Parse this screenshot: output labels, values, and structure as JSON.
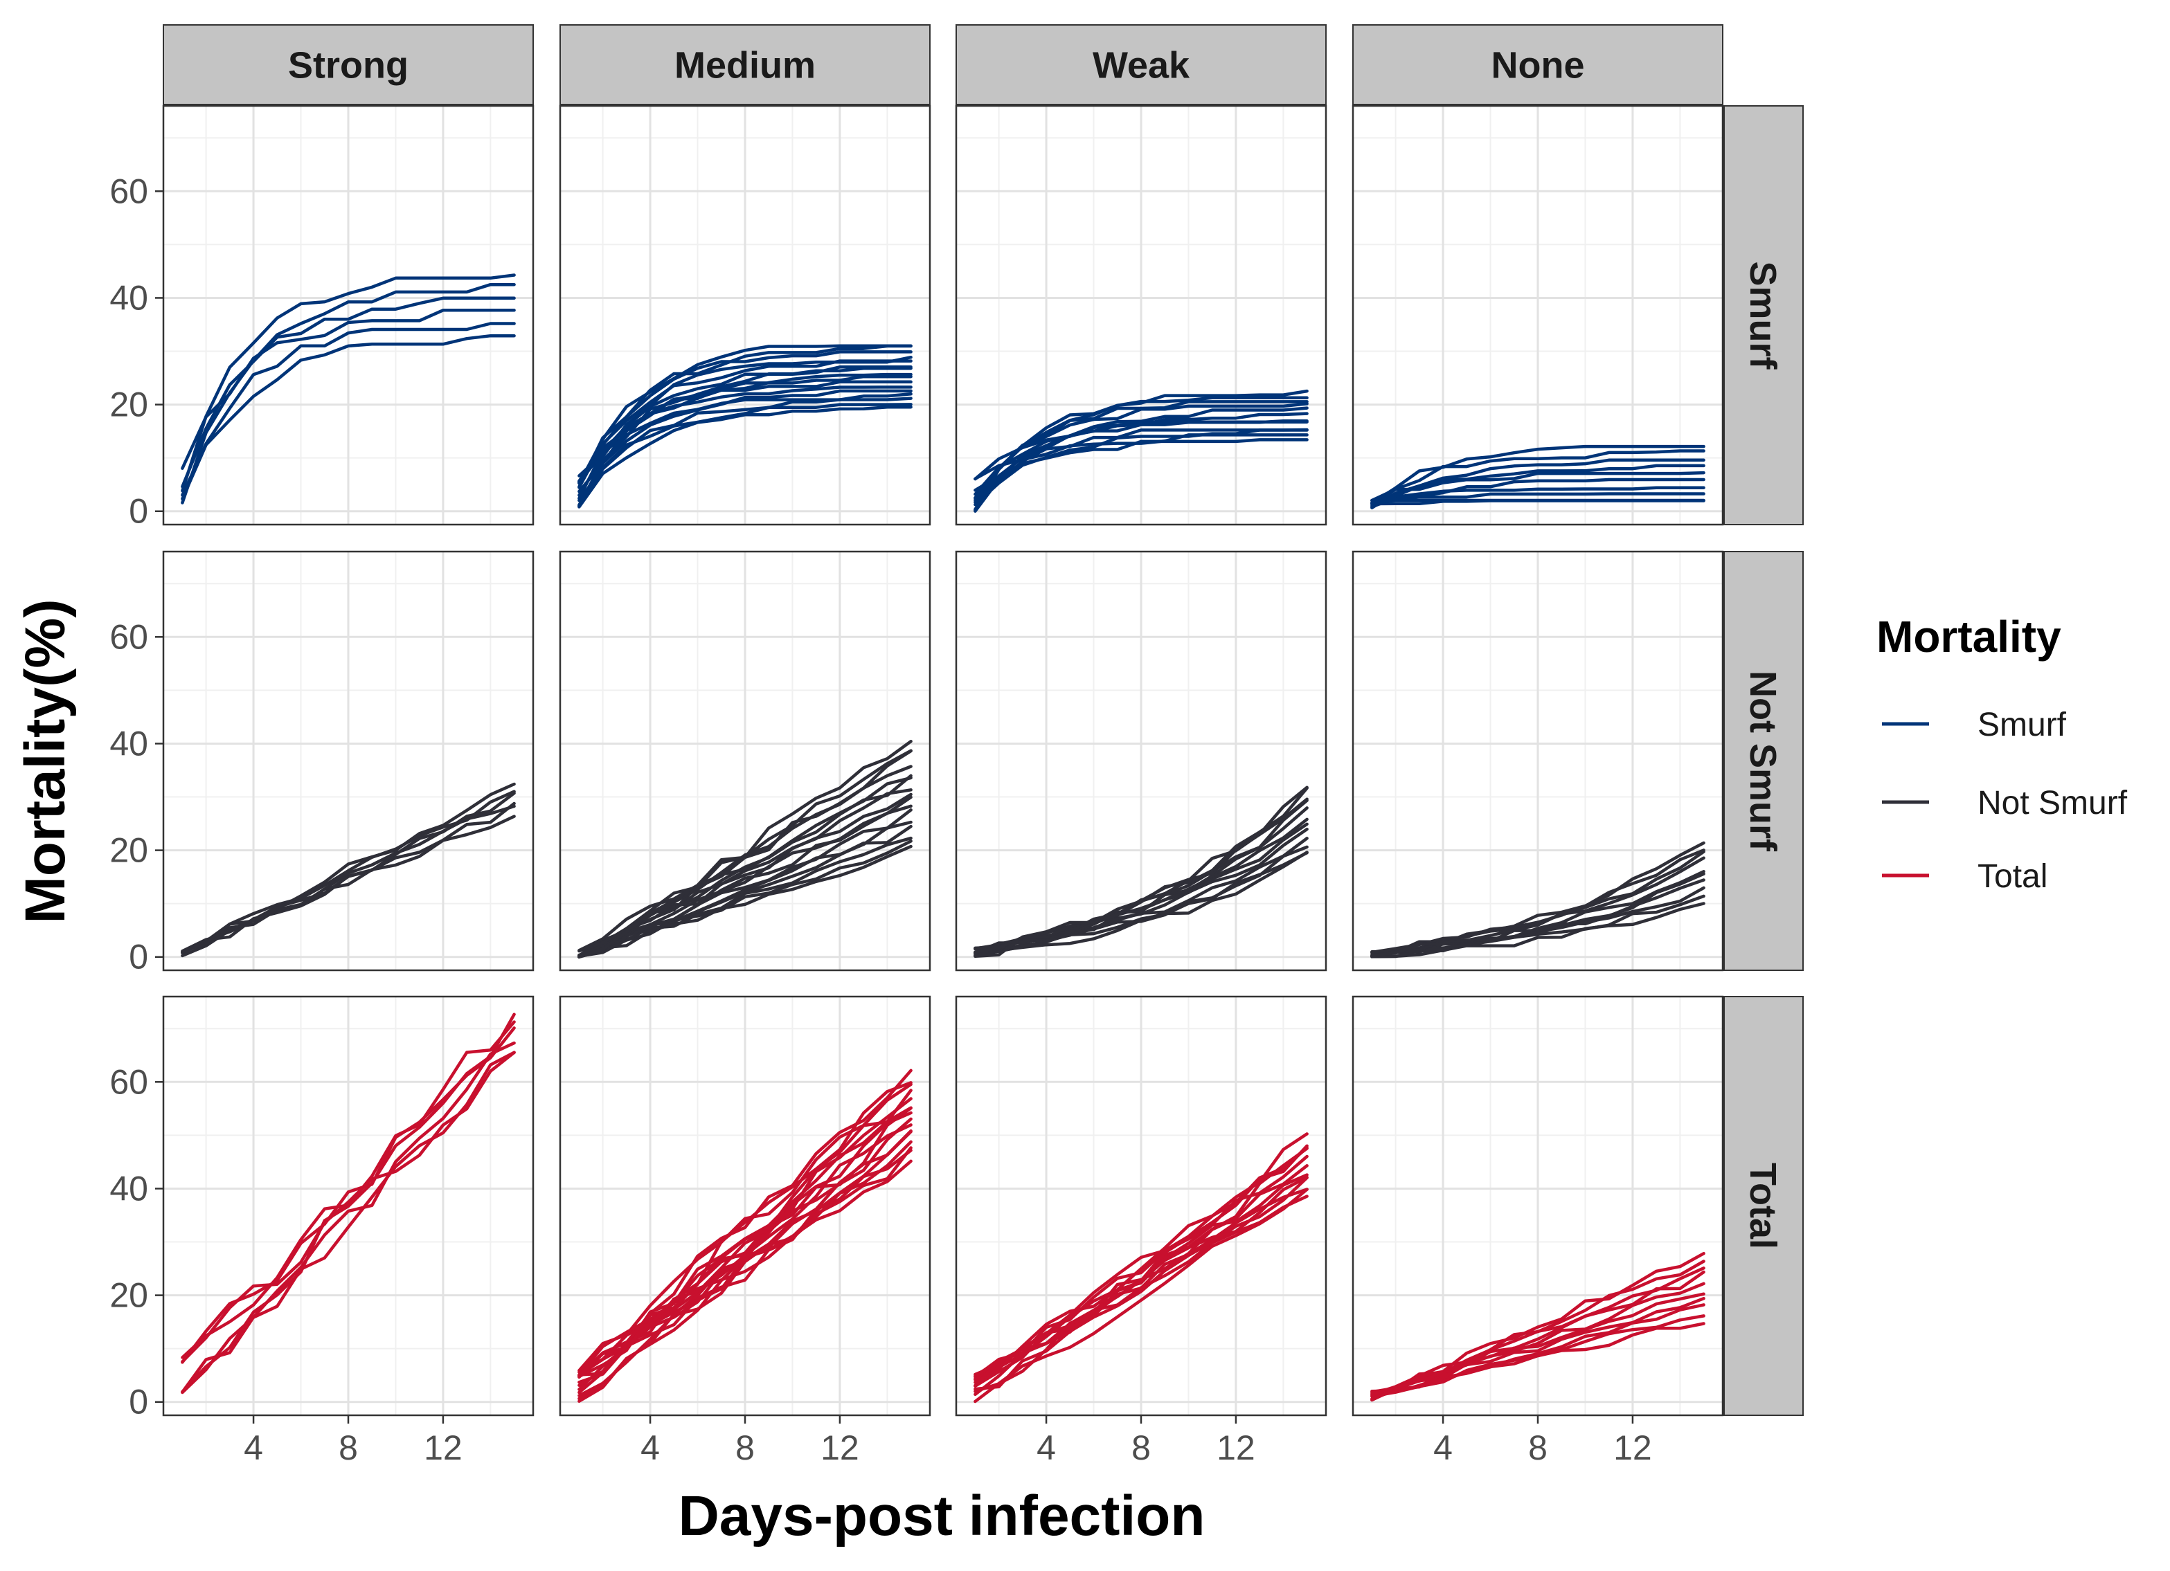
{
  "chart_data": {
    "type": "line",
    "xlabel": "Days-post infection",
    "ylabel": "Mortality(%)",
    "xlim": [
      0.2,
      15.8
    ],
    "ylim": [
      -2.5,
      76
    ],
    "x_ticks": [
      4,
      8,
      12
    ],
    "y_ticks": [
      0,
      20,
      40,
      60
    ],
    "x_tick_labels": [
      "4",
      "8",
      "12"
    ],
    "y_tick_labels": [
      "0",
      "20",
      "40",
      "60"
    ],
    "column_facets": [
      "Strong",
      "Medium",
      "Weak",
      "None"
    ],
    "row_facets": [
      "Smurf",
      "Not Smurf",
      "Total"
    ],
    "colors": {
      "Smurf": "#003478",
      "Not Smurf": "#2f2f38",
      "Total": "#c8102e"
    },
    "legend": {
      "title": "Mortality",
      "position": "right",
      "entries": [
        "Smurf",
        "Not Smurf",
        "Total"
      ]
    },
    "days": [
      1,
      2,
      3,
      4,
      5,
      6,
      7,
      8,
      9,
      10,
      11,
      12,
      13,
      14,
      15
    ],
    "panels": {
      "Smurf": {
        "Strong": {
          "n": 6,
          "end_range": [
            32,
            44
          ],
          "curve": "saturating",
          "start_range": [
            1,
            7
          ]
        },
        "Medium": {
          "n": 16,
          "end_range": [
            19,
            31
          ],
          "curve": "saturating",
          "start_range": [
            0,
            6
          ]
        },
        "Weak": {
          "n": 12,
          "end_range": [
            13,
            22
          ],
          "curve": "saturating",
          "start_range": [
            0,
            6
          ]
        },
        "None": {
          "n": 10,
          "end_range": [
            0,
            12
          ],
          "curve": "saturating",
          "start_range": [
            0,
            2
          ]
        }
      },
      "Not Smurf": {
        "Strong": {
          "n": 6,
          "end_range": [
            27,
            32
          ],
          "curve": "linear",
          "start_range": [
            0,
            1
          ]
        },
        "Medium": {
          "n": 16,
          "end_range": [
            20,
            40
          ],
          "curve": "linear",
          "start_range": [
            0,
            0
          ]
        },
        "Weak": {
          "n": 12,
          "end_range": [
            19,
            32
          ],
          "curve": "convex",
          "start_range": [
            0,
            1
          ]
        },
        "None": {
          "n": 10,
          "end_range": [
            10,
            22
          ],
          "curve": "convex",
          "start_range": [
            0,
            1
          ]
        }
      },
      "Total": {
        "Strong": {
          "n": 6,
          "end_range": [
            64,
            73
          ],
          "curve": "linear",
          "start_range": [
            1,
            8
          ]
        },
        "Medium": {
          "n": 16,
          "end_range": [
            45,
            62
          ],
          "curve": "linear",
          "start_range": [
            0,
            6
          ]
        },
        "Weak": {
          "n": 12,
          "end_range": [
            38,
            49
          ],
          "curve": "linear",
          "start_range": [
            0,
            5
          ]
        },
        "None": {
          "n": 10,
          "end_range": [
            15,
            28
          ],
          "curve": "linear",
          "start_range": [
            0,
            2
          ]
        }
      }
    }
  }
}
